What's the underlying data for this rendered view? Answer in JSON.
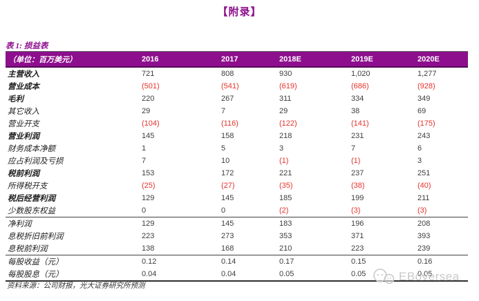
{
  "page": {
    "title": "【附录】"
  },
  "colors": {
    "accent_purple": "#8D0F8D",
    "negative_red": "#E5322B",
    "header_text": "#FFFFFF"
  },
  "table": {
    "caption": "表 1: 损益表",
    "unit_label": "（单位：百万美元）",
    "columns": [
      "2016",
      "2017",
      "2018E",
      "2019E",
      "2020E"
    ],
    "rows": [
      {
        "label": "主营收入",
        "bold": true,
        "section_end": false,
        "values": [
          "721",
          "808",
          "930",
          "1,020",
          "1,277"
        ]
      },
      {
        "label": "营业成本",
        "bold": true,
        "section_end": false,
        "values": [
          "(501)",
          "(541)",
          "(619)",
          "(686)",
          "(928)"
        ]
      },
      {
        "label": "毛利",
        "bold": true,
        "section_end": false,
        "values": [
          "220",
          "267",
          "311",
          "334",
          "349"
        ]
      },
      {
        "label": "其它收入",
        "bold": false,
        "section_end": false,
        "values": [
          "29",
          "7",
          "29",
          "38",
          "69"
        ]
      },
      {
        "label": "营业开支",
        "bold": false,
        "section_end": false,
        "values": [
          "(104)",
          "(116)",
          "(122)",
          "(141)",
          "(175)"
        ]
      },
      {
        "label": "营业利润",
        "bold": true,
        "section_end": false,
        "values": [
          "145",
          "158",
          "218",
          "231",
          "243"
        ]
      },
      {
        "label": "财务成本净额",
        "bold": false,
        "section_end": false,
        "values": [
          "1",
          "5",
          "3",
          "7",
          "6"
        ]
      },
      {
        "label": "应占利润及亏损",
        "bold": false,
        "section_end": false,
        "values": [
          "7",
          "10",
          "(1)",
          "(1)",
          "3"
        ]
      },
      {
        "label": "税前利润",
        "bold": true,
        "section_end": false,
        "values": [
          "153",
          "172",
          "221",
          "237",
          "251"
        ]
      },
      {
        "label": "所得税开支",
        "bold": false,
        "section_end": false,
        "values": [
          "(25)",
          "(27)",
          "(35)",
          "(38)",
          "(40)"
        ]
      },
      {
        "label": "税后经营利润",
        "bold": true,
        "section_end": false,
        "values": [
          "129",
          "145",
          "185",
          "199",
          "211"
        ]
      },
      {
        "label": "少数股东权益",
        "bold": false,
        "section_end": true,
        "values": [
          "0",
          "0",
          "(2)",
          "(3)",
          "(3)"
        ]
      },
      {
        "label": "净利润",
        "bold": false,
        "section_end": false,
        "values": [
          "129",
          "145",
          "183",
          "196",
          "208"
        ]
      },
      {
        "label": "息税折旧前利润",
        "bold": false,
        "section_end": false,
        "values": [
          "223",
          "273",
          "353",
          "371",
          "393"
        ]
      },
      {
        "label": "息税前利润",
        "bold": false,
        "section_end": true,
        "values": [
          "138",
          "168",
          "210",
          "223",
          "239"
        ]
      },
      {
        "label": "每股收益（元）",
        "bold": false,
        "section_end": false,
        "values": [
          "0.12",
          "0.14",
          "0.17",
          "0.15",
          "0.16"
        ]
      },
      {
        "label": "每股股息（元）",
        "bold": false,
        "section_end": false,
        "values": [
          "0.04",
          "0.04",
          "0.05",
          "0.05",
          "0.05"
        ]
      }
    ],
    "source": "资料来源：公司财报，光大证券研究所预测"
  },
  "watermark": {
    "text": "EBoversea",
    "logo": "chat-bubbles-icon"
  }
}
